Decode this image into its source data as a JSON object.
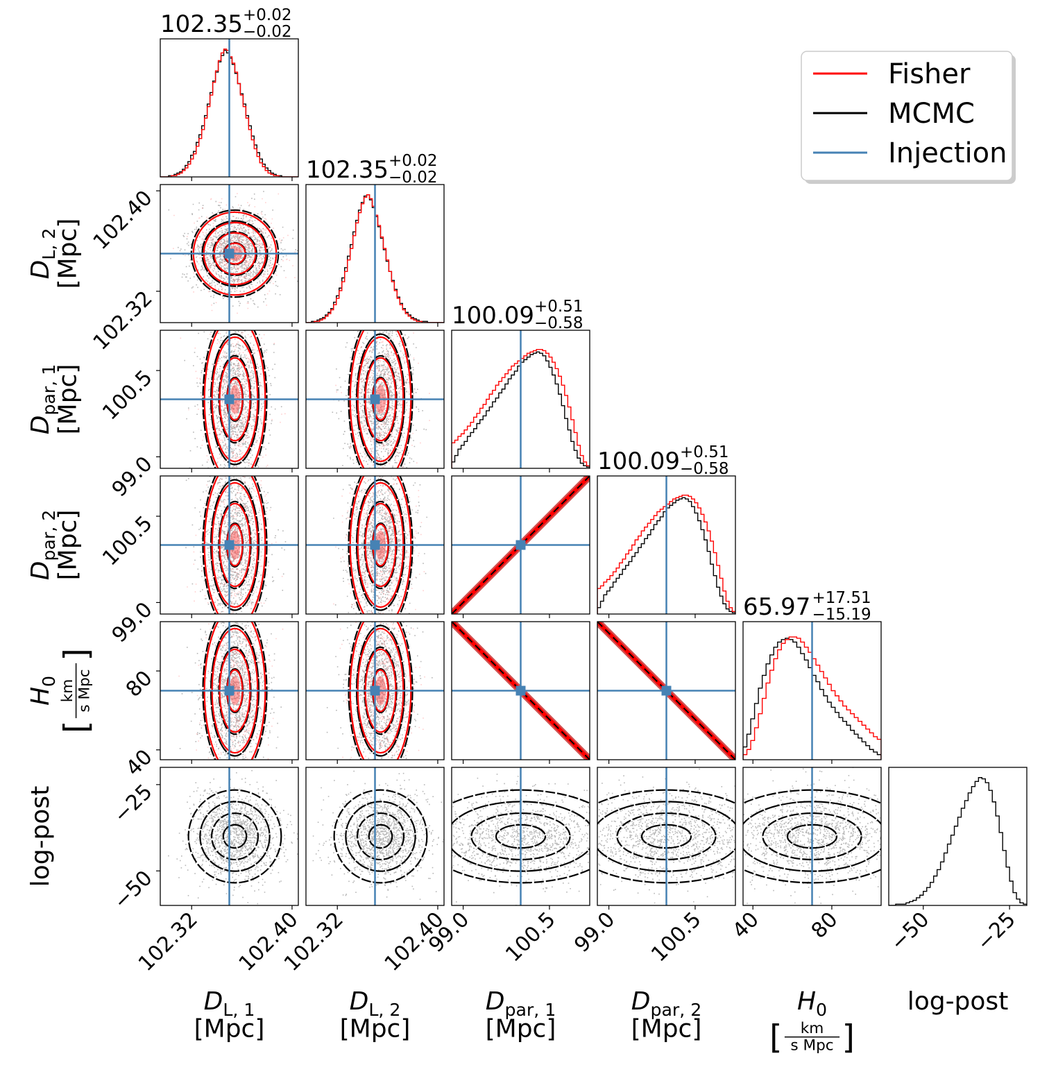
{
  "chart_data": {
    "type": "corner",
    "parameters": [
      {
        "id": "DL1",
        "axis_label": [
          "D_{L,1}",
          "[Mpc]"
        ],
        "axis_main": "D",
        "axis_sub": "L, 1",
        "axis_unit": "[Mpc]",
        "range": [
          102.295,
          102.405
        ],
        "ticks": [
          102.32,
          102.4
        ],
        "tick_labels": [
          "102.32",
          "102.40"
        ],
        "injection": 102.35,
        "title": {
          "median": "102.35",
          "plus": "+0.02",
          "minus": "−0.02"
        }
      },
      {
        "id": "DL2",
        "axis_main": "D",
        "axis_sub": "L, 2",
        "axis_unit": "[Mpc]",
        "range": [
          102.295,
          102.405
        ],
        "ticks": [
          102.32,
          102.4
        ],
        "tick_labels": [
          "102.32",
          "102.40"
        ],
        "injection": 102.35,
        "title": {
          "median": "102.35",
          "plus": "+0.02",
          "minus": "−0.02"
        }
      },
      {
        "id": "Dpar1",
        "axis_main": "D",
        "axis_sub": "par, 1",
        "axis_unit": "[Mpc]",
        "range": [
          98.8,
          101.2
        ],
        "ticks": [
          99.0,
          100.5
        ],
        "tick_labels": [
          "99.0",
          "100.5"
        ],
        "injection": 100.0,
        "title": {
          "median": "100.09",
          "plus": "+0.51",
          "minus": "−0.58"
        }
      },
      {
        "id": "Dpar2",
        "axis_main": "D",
        "axis_sub": "par, 2",
        "axis_unit": "[Mpc]",
        "range": [
          98.8,
          101.2
        ],
        "ticks": [
          99.0,
          100.5
        ],
        "tick_labels": [
          "99.0",
          "100.5"
        ],
        "injection": 100.0,
        "title": {
          "median": "100.09",
          "plus": "+0.51",
          "minus": "−0.58"
        }
      },
      {
        "id": "H0",
        "axis_main": "H",
        "axis_sub": "0",
        "axis_unit_num": "km",
        "axis_unit_den": "s Mpc",
        "range": [
          35,
          105
        ],
        "ticks": [
          40,
          80
        ],
        "tick_labels": [
          "40",
          "80"
        ],
        "injection": 70,
        "title": {
          "median": "65.97",
          "plus": "+17.51",
          "minus": "−15.19"
        }
      },
      {
        "id": "logpost",
        "axis_main": "log-post",
        "range": [
          -60,
          -20
        ],
        "ticks": [
          -50,
          -25
        ],
        "tick_labels": [
          "−50",
          "−25"
        ],
        "injection": null,
        "title": null
      }
    ],
    "histograms": {
      "DL1": {
        "fisher": [
          0,
          0,
          0,
          0,
          1,
          1,
          2,
          3,
          5,
          7,
          10,
          14,
          18,
          24,
          30,
          37,
          46,
          55,
          64,
          74,
          83,
          91,
          97,
          100,
          99,
          94,
          89,
          82,
          73,
          64,
          55,
          46,
          37,
          29,
          22,
          16,
          11,
          8,
          5,
          3,
          2,
          1,
          1,
          0,
          0,
          0,
          0,
          0,
          0,
          0
        ],
        "mcmc": [
          0,
          0,
          0,
          1,
          1,
          2,
          3,
          4,
          6,
          9,
          12,
          17,
          20,
          27,
          33,
          40,
          48,
          57,
          66,
          75,
          82,
          90,
          95,
          99,
          97,
          93,
          88,
          81,
          73,
          65,
          57,
          48,
          40,
          32,
          25,
          19,
          14,
          10,
          7,
          5,
          3,
          2,
          1,
          1,
          0,
          0,
          0,
          0,
          0,
          0
        ]
      },
      "DL2": {
        "fisher": [
          0,
          0,
          0,
          1,
          1,
          2,
          3,
          5,
          7,
          10,
          14,
          19,
          25,
          32,
          40,
          49,
          58,
          68,
          78,
          86,
          93,
          98,
          100,
          97,
          91,
          84,
          76,
          67,
          58,
          49,
          40,
          32,
          25,
          19,
          14,
          10,
          7,
          5,
          3,
          2,
          1,
          1,
          0,
          0,
          0,
          0,
          0,
          0,
          0,
          0
        ],
        "mcmc": [
          0,
          0,
          1,
          1,
          2,
          3,
          4,
          6,
          8,
          11,
          16,
          21,
          27,
          35,
          43,
          52,
          61,
          71,
          80,
          88,
          94,
          99,
          100,
          96,
          90,
          83,
          75,
          66,
          57,
          48,
          40,
          33,
          26,
          20,
          15,
          11,
          8,
          6,
          4,
          3,
          2,
          1,
          1,
          1,
          0,
          0,
          0,
          0,
          0,
          0
        ]
      },
      "Dpar1": {
        "fisher": [
          20,
          22,
          25,
          27,
          30,
          33,
          36,
          40,
          43,
          47,
          50,
          54,
          58,
          61,
          65,
          68,
          71,
          74,
          77,
          80,
          82,
          84,
          86,
          88,
          90,
          91,
          92,
          93,
          93,
          92,
          90,
          87,
          83,
          78,
          72,
          65,
          57,
          48,
          38,
          28,
          18,
          10,
          5,
          2
        ],
        "mcmc": [
          5,
          10,
          15,
          18,
          21,
          25,
          28,
          31,
          35,
          38,
          41,
          45,
          48,
          52,
          55,
          59,
          62,
          66,
          70,
          73,
          76,
          80,
          83,
          85,
          87,
          89,
          90,
          91,
          90,
          88,
          84,
          79,
          73,
          66,
          58,
          49,
          39,
          30,
          21,
          14,
          8,
          4,
          2,
          1
        ]
      },
      "Dpar2": {
        "fisher": [
          20,
          22,
          25,
          27,
          30,
          33,
          36,
          40,
          43,
          47,
          50,
          54,
          58,
          61,
          65,
          68,
          71,
          74,
          77,
          80,
          82,
          84,
          86,
          88,
          90,
          91,
          92,
          93,
          93,
          92,
          90,
          87,
          83,
          78,
          72,
          65,
          57,
          48,
          38,
          28,
          18,
          10,
          5,
          2
        ],
        "mcmc": [
          5,
          10,
          15,
          18,
          21,
          25,
          28,
          31,
          35,
          38,
          41,
          45,
          48,
          52,
          55,
          59,
          62,
          66,
          70,
          73,
          76,
          80,
          83,
          85,
          87,
          89,
          90,
          91,
          90,
          88,
          84,
          79,
          73,
          66,
          58,
          49,
          39,
          30,
          21,
          14,
          8,
          4,
          2,
          1
        ]
      },
      "H0": {
        "fisher": [
          4,
          8,
          15,
          25,
          36,
          48,
          60,
          70,
          79,
          86,
          91,
          94,
          96,
          96,
          95,
          92,
          88,
          84,
          79,
          74,
          69,
          64,
          59,
          54,
          50,
          46,
          42,
          39,
          36,
          33,
          30,
          27,
          24,
          21,
          18,
          16
        ],
        "mcmc": [
          10,
          20,
          32,
          44,
          56,
          66,
          75,
          82,
          88,
          92,
          94,
          95,
          94,
          92,
          88,
          83,
          78,
          72,
          66,
          61,
          55,
          50,
          45,
          41,
          37,
          33,
          30,
          27,
          23,
          20,
          17,
          14,
          11,
          8,
          6,
          4
        ]
      },
      "logpost": {
        "mcmc": [
          0,
          0,
          1,
          1,
          1,
          2,
          3,
          4,
          6,
          8,
          11,
          14,
          18,
          23,
          28,
          34,
          41,
          48,
          55,
          62,
          69,
          76,
          82,
          88,
          93,
          97,
          100,
          99,
          96,
          90,
          81,
          70,
          57,
          43,
          30,
          19,
          10,
          5,
          2,
          1
        ]
      }
    },
    "correlations": {
      "Dpar1-Dpar2": 0.999,
      "Dpar1-H0": -0.999,
      "Dpar2-H0": -0.999
    },
    "legend": [
      {
        "label": "Fisher",
        "color": "#ff0000"
      },
      {
        "label": "MCMC",
        "color": "#000000"
      },
      {
        "label": "Injection",
        "color": "#4682b4"
      }
    ],
    "colors": {
      "fisher": "#ff0000",
      "mcmc": "#000000",
      "injection": "#4682b4"
    }
  }
}
